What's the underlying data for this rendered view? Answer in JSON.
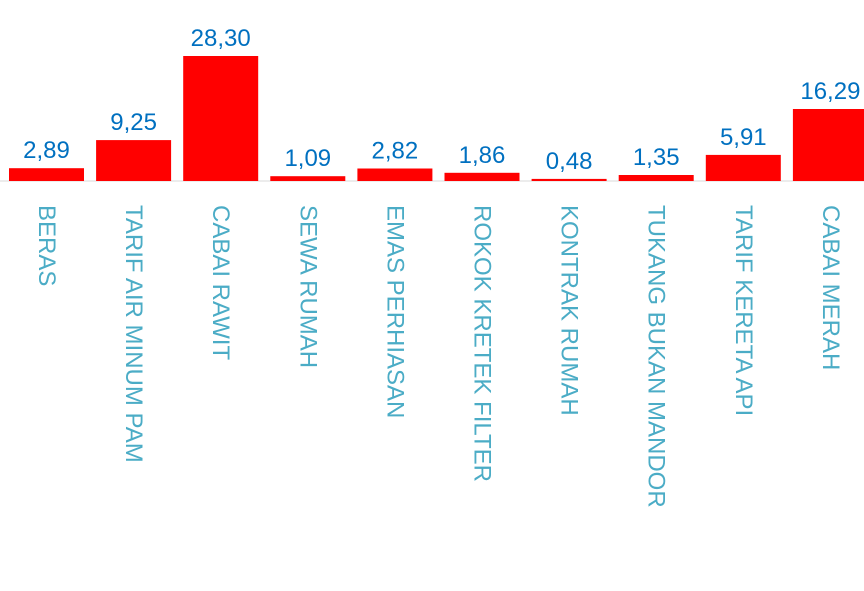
{
  "chart_data": {
    "type": "bar",
    "categories": [
      "BERAS",
      "TARIF AIR MINUM PAM",
      "CABAI RAWIT",
      "SEWA RUMAH",
      "EMAS PERHIASAN",
      "ROKOK KRETEK FILTER",
      "KONTRAK RUMAH",
      "TUKANG BUKAN MANDOR",
      "TARIF KERETA API",
      "CABAI MERAH"
    ],
    "values": [
      2.89,
      9.25,
      28.3,
      1.09,
      2.82,
      1.86,
      0.48,
      1.35,
      5.91,
      16.29
    ],
    "value_labels": [
      "2,89",
      "9,25",
      "28,30",
      "1,09",
      "2,82",
      "1,86",
      "0,48",
      "1,35",
      "5,91",
      "16,29"
    ],
    "title": "",
    "xlabel": "",
    "ylabel": "",
    "ylim": [
      0,
      28.3
    ],
    "grid": false,
    "legend": "none",
    "colors": {
      "bar": "#ff0000",
      "value_label": "#0070c0",
      "category_label": "#4bacc6"
    }
  }
}
